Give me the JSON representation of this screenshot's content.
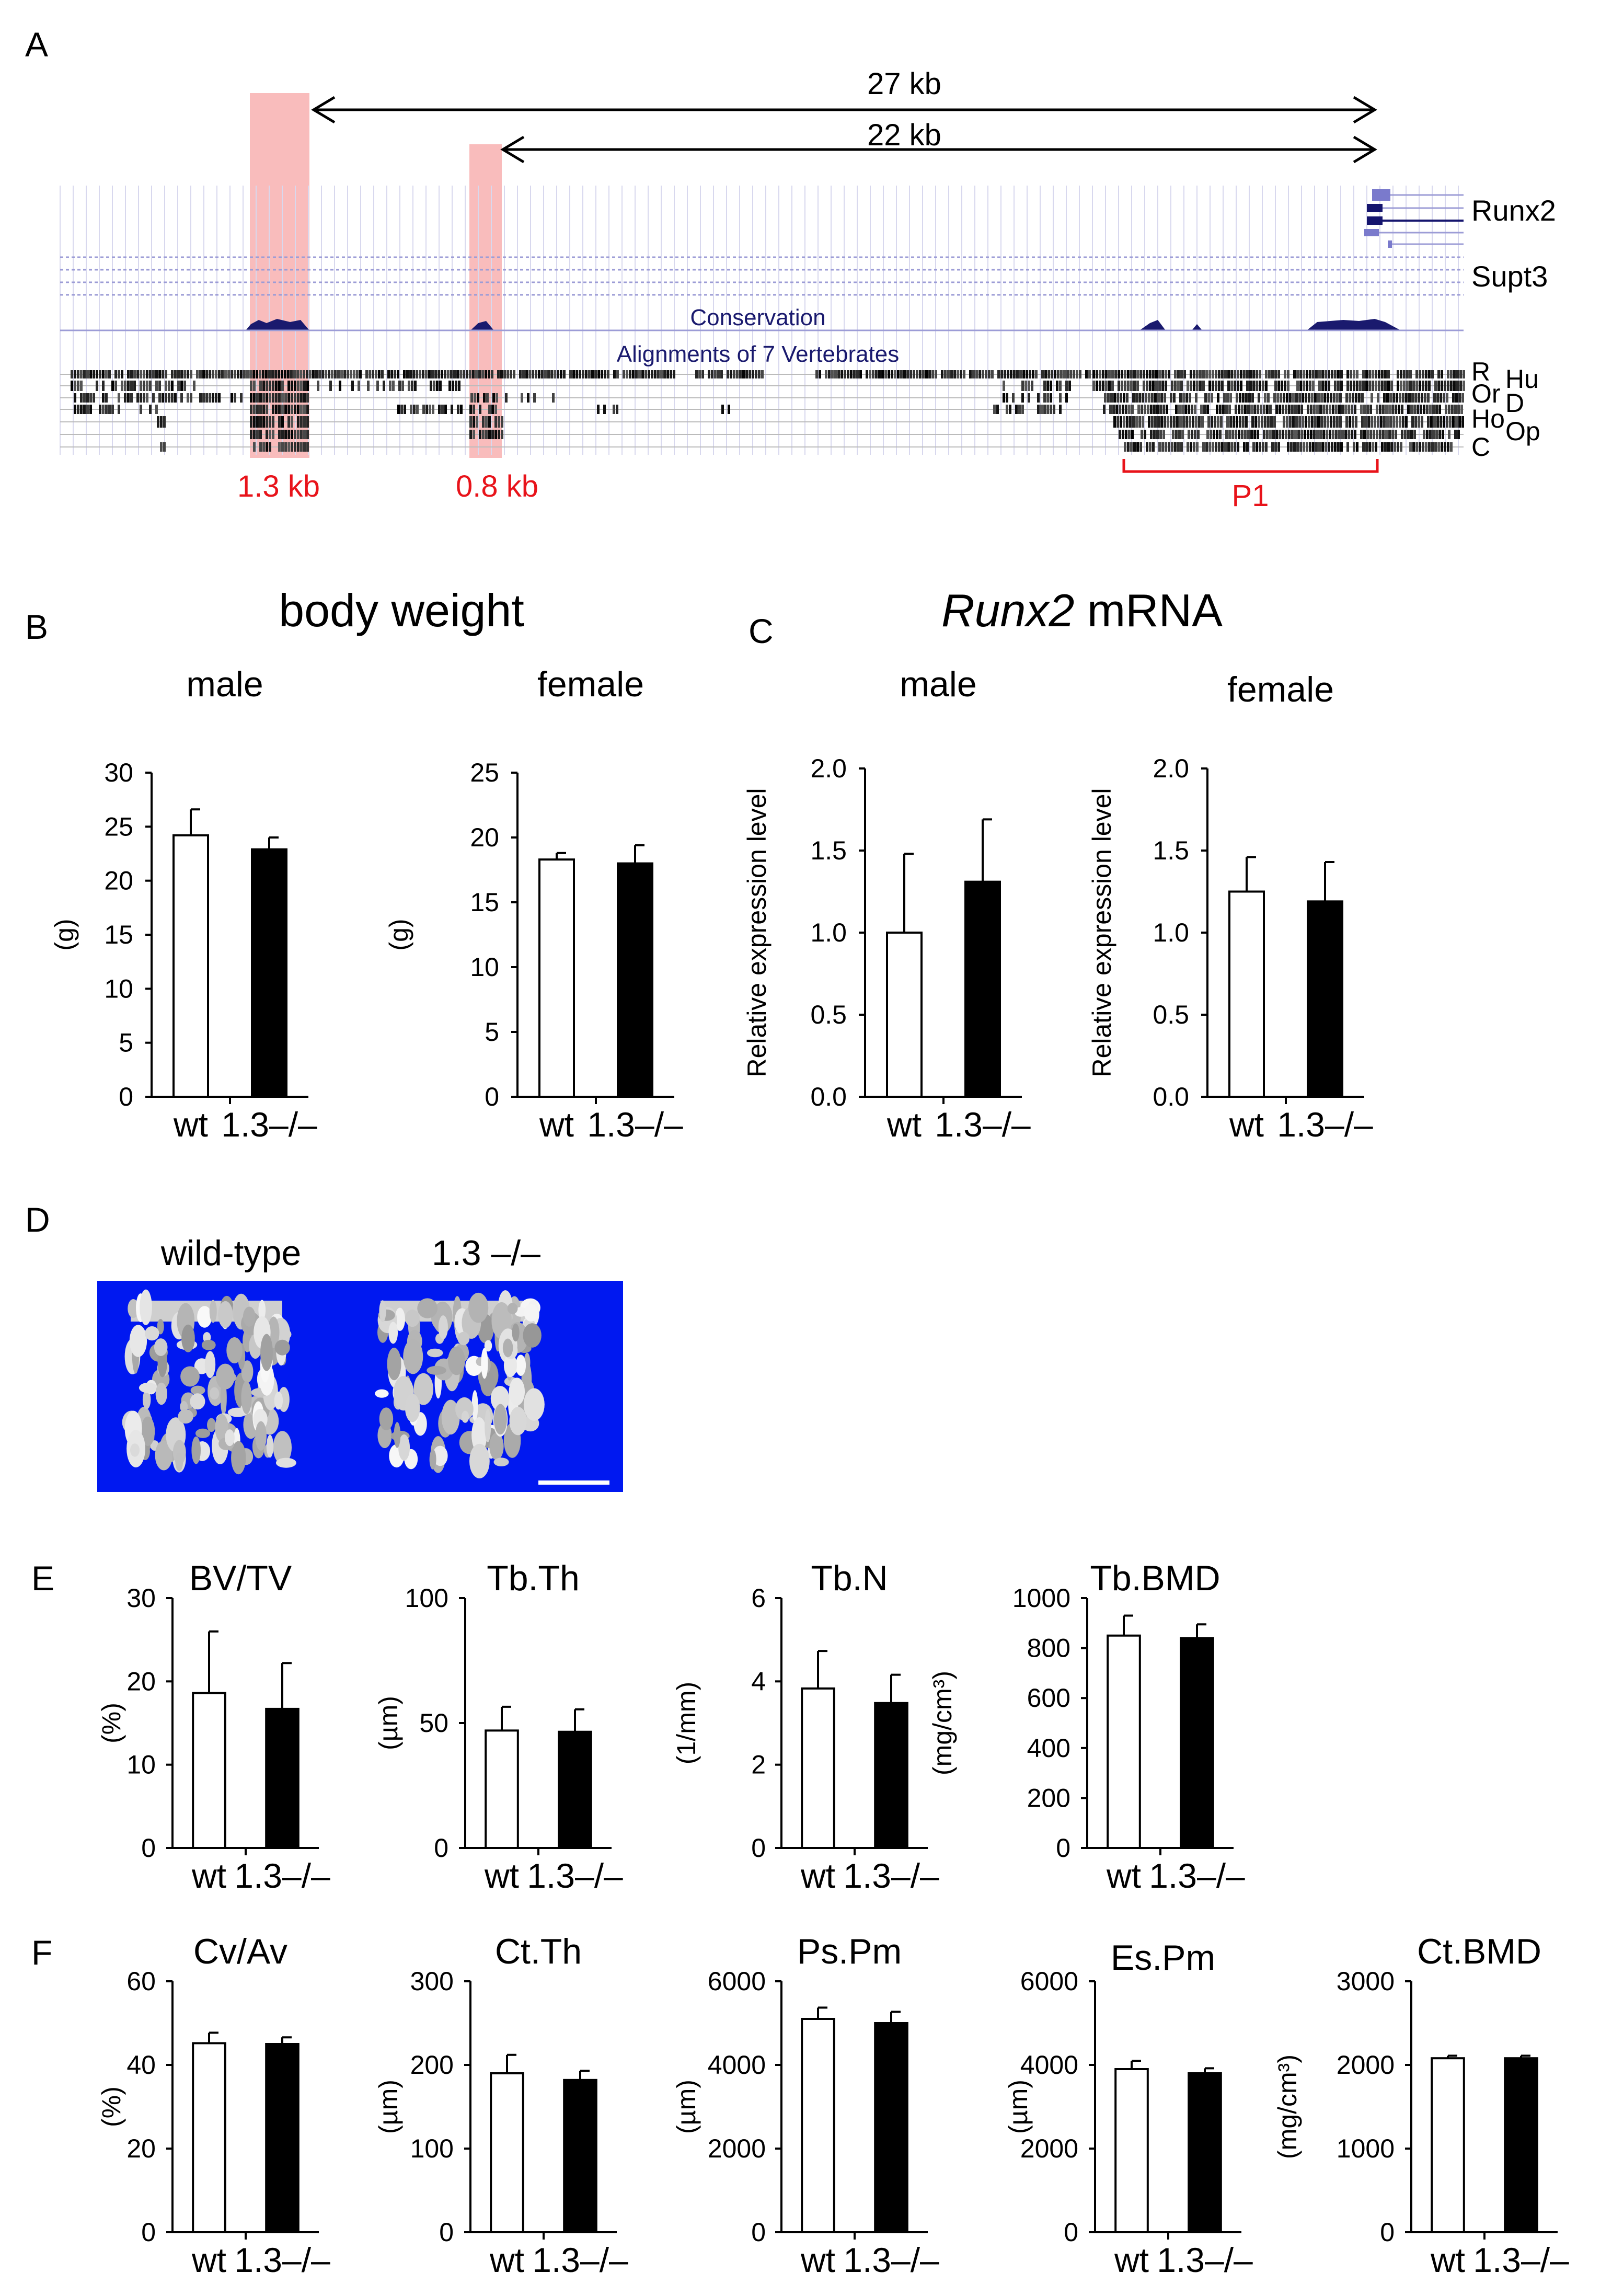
{
  "panels": {
    "A": {
      "letter": "A",
      "distances": [
        "27 kb",
        "22 kb"
      ],
      "genes": [
        "Runx2",
        "Supt3"
      ],
      "track_labels": {
        "conservation": "Conservation",
        "alignments": "Alignments of 7 Vertebrates"
      },
      "species": [
        "R",
        "Hu",
        "Or",
        "D",
        "Ho",
        "Op",
        "C"
      ],
      "regions": [
        "1.3 kb",
        "0.8 kb",
        "P1"
      ],
      "colors": {
        "highlight": "#f7a6a6",
        "conservation": "#1a1a6e",
        "region_label": "#e8131a",
        "grid": "#c8c8e8"
      }
    },
    "B": {
      "letter": "B",
      "title": "body weight"
    },
    "C": {
      "letter": "C",
      "title_italic": "Runx2",
      "title_rest": " mRNA"
    },
    "D": {
      "letter": "D",
      "labels": [
        "wild-type",
        "1.3 –/–"
      ],
      "colors": {
        "background": "#0018f0",
        "bone": "#d8d8d8"
      }
    },
    "E": {
      "letter": "E"
    },
    "F": {
      "letter": "F"
    }
  },
  "chart_data": [
    {
      "panel": "B",
      "type": "bar",
      "title": "male",
      "ylabel": "(g)",
      "categories": [
        "wt",
        "1.3–/–"
      ],
      "values": [
        24.2,
        22.9
      ],
      "errors": [
        2.4,
        1.1
      ],
      "ylim": [
        0,
        30
      ],
      "yticks": [
        0,
        5,
        10,
        15,
        20,
        25,
        30
      ],
      "colors": [
        "#ffffff",
        "#000000"
      ]
    },
    {
      "panel": "B",
      "type": "bar",
      "title": "female",
      "ylabel": "(g)",
      "categories": [
        "wt",
        "1.3–/–"
      ],
      "values": [
        18.3,
        18.0
      ],
      "errors": [
        0.5,
        1.4
      ],
      "ylim": [
        0,
        25
      ],
      "yticks": [
        0,
        5,
        10,
        15,
        20,
        25
      ],
      "colors": [
        "#ffffff",
        "#000000"
      ]
    },
    {
      "panel": "C",
      "type": "bar",
      "title": "male",
      "ylabel": "Relative expression level",
      "categories": [
        "wt",
        "1.3–/–"
      ],
      "values": [
        1.0,
        1.31
      ],
      "errors": [
        0.48,
        0.38
      ],
      "ylim": [
        0,
        2.0
      ],
      "yticks": [
        "0.0",
        "0.5",
        "1.0",
        "1.5",
        "2.0"
      ],
      "colors": [
        "#ffffff",
        "#000000"
      ]
    },
    {
      "panel": "C",
      "type": "bar",
      "title": "female",
      "ylabel": "Relative expression level",
      "categories": [
        "wt",
        "1.3–/–"
      ],
      "values": [
        1.25,
        1.19
      ],
      "errors": [
        0.21,
        0.24
      ],
      "ylim": [
        0,
        2.0
      ],
      "yticks": [
        "0.0",
        "0.5",
        "1.0",
        "1.5",
        "2.0"
      ],
      "colors": [
        "#ffffff",
        "#000000"
      ]
    },
    {
      "panel": "E",
      "type": "bar",
      "title": "BV/TV",
      "ylabel": "(%)",
      "categories": [
        "wt",
        "1.3–/–"
      ],
      "values": [
        18.6,
        16.7
      ],
      "errors": [
        7.4,
        5.5
      ],
      "ylim": [
        0,
        30
      ],
      "yticks": [
        0,
        10,
        20,
        30
      ],
      "colors": [
        "#ffffff",
        "#000000"
      ]
    },
    {
      "panel": "E",
      "type": "bar",
      "title": "Tb.Th",
      "ylabel": "(µm)",
      "categories": [
        "wt",
        "1.3–/–"
      ],
      "values": [
        47,
        46.5
      ],
      "errors": [
        9.5,
        9
      ],
      "ylim": [
        0,
        100
      ],
      "yticks": [
        0,
        50,
        100
      ],
      "colors": [
        "#ffffff",
        "#000000"
      ]
    },
    {
      "panel": "E",
      "type": "bar",
      "title": "Tb.N",
      "ylabel": "(1/mm)",
      "categories": [
        "wt",
        "1.3–/–"
      ],
      "values": [
        3.83,
        3.48
      ],
      "errors": [
        0.9,
        0.68
      ],
      "ylim": [
        0,
        6
      ],
      "yticks": [
        0,
        2,
        4,
        6
      ],
      "colors": [
        "#ffffff",
        "#000000"
      ]
    },
    {
      "panel": "E",
      "type": "bar",
      "title": "Tb.BMD",
      "ylabel": "(mg/cm³)",
      "categories": [
        "wt",
        "1.3–/–"
      ],
      "values": [
        850,
        840
      ],
      "errors": [
        80,
        55
      ],
      "ylim": [
        0,
        1000
      ],
      "yticks": [
        0,
        200,
        400,
        600,
        800,
        1000
      ],
      "colors": [
        "#ffffff",
        "#000000"
      ]
    },
    {
      "panel": "F",
      "type": "bar",
      "title": "Cv/Av",
      "ylabel": "(%)",
      "categories": [
        "wt",
        "1.3–/–"
      ],
      "values": [
        45.2,
        45.0
      ],
      "errors": [
        2.5,
        1.6
      ],
      "ylim": [
        0,
        60
      ],
      "yticks": [
        0,
        20,
        40,
        60
      ],
      "colors": [
        "#ffffff",
        "#000000"
      ]
    },
    {
      "panel": "F",
      "type": "bar",
      "title": "Ct.Th",
      "ylabel": "(µm)",
      "categories": [
        "wt",
        "1.3–/–"
      ],
      "values": [
        190,
        182
      ],
      "errors": [
        22,
        11
      ],
      "ylim": [
        0,
        300
      ],
      "yticks": [
        0,
        100,
        200,
        300
      ],
      "colors": [
        "#ffffff",
        "#000000"
      ]
    },
    {
      "panel": "F",
      "type": "bar",
      "title": "Ps.Pm",
      "ylabel": "(µm)",
      "categories": [
        "wt",
        "1.3–/–"
      ],
      "values": [
        5100,
        5000
      ],
      "errors": [
        270,
        270
      ],
      "ylim": [
        0,
        6000
      ],
      "yticks": [
        0,
        2000,
        4000,
        6000
      ],
      "colors": [
        "#ffffff",
        "#000000"
      ]
    },
    {
      "panel": "F",
      "type": "bar",
      "title": "Es.Pm",
      "ylabel": "(µm)",
      "categories": [
        "wt",
        "1.3–/–"
      ],
      "values": [
        3900,
        3800
      ],
      "errors": [
        200,
        120
      ],
      "ylim": [
        0,
        6000
      ],
      "yticks": [
        0,
        2000,
        4000,
        6000
      ],
      "colors": [
        "#ffffff",
        "#000000"
      ]
    },
    {
      "panel": "F",
      "type": "bar",
      "title": "Ct.BMD",
      "ylabel": "(mg/cm³)",
      "categories": [
        "wt",
        "1.3–/–"
      ],
      "values": [
        2080,
        2080
      ],
      "errors": [
        30,
        30
      ],
      "ylim": [
        0,
        3000
      ],
      "yticks": [
        0,
        1000,
        2000,
        3000
      ],
      "colors": [
        "#ffffff",
        "#000000"
      ]
    }
  ]
}
